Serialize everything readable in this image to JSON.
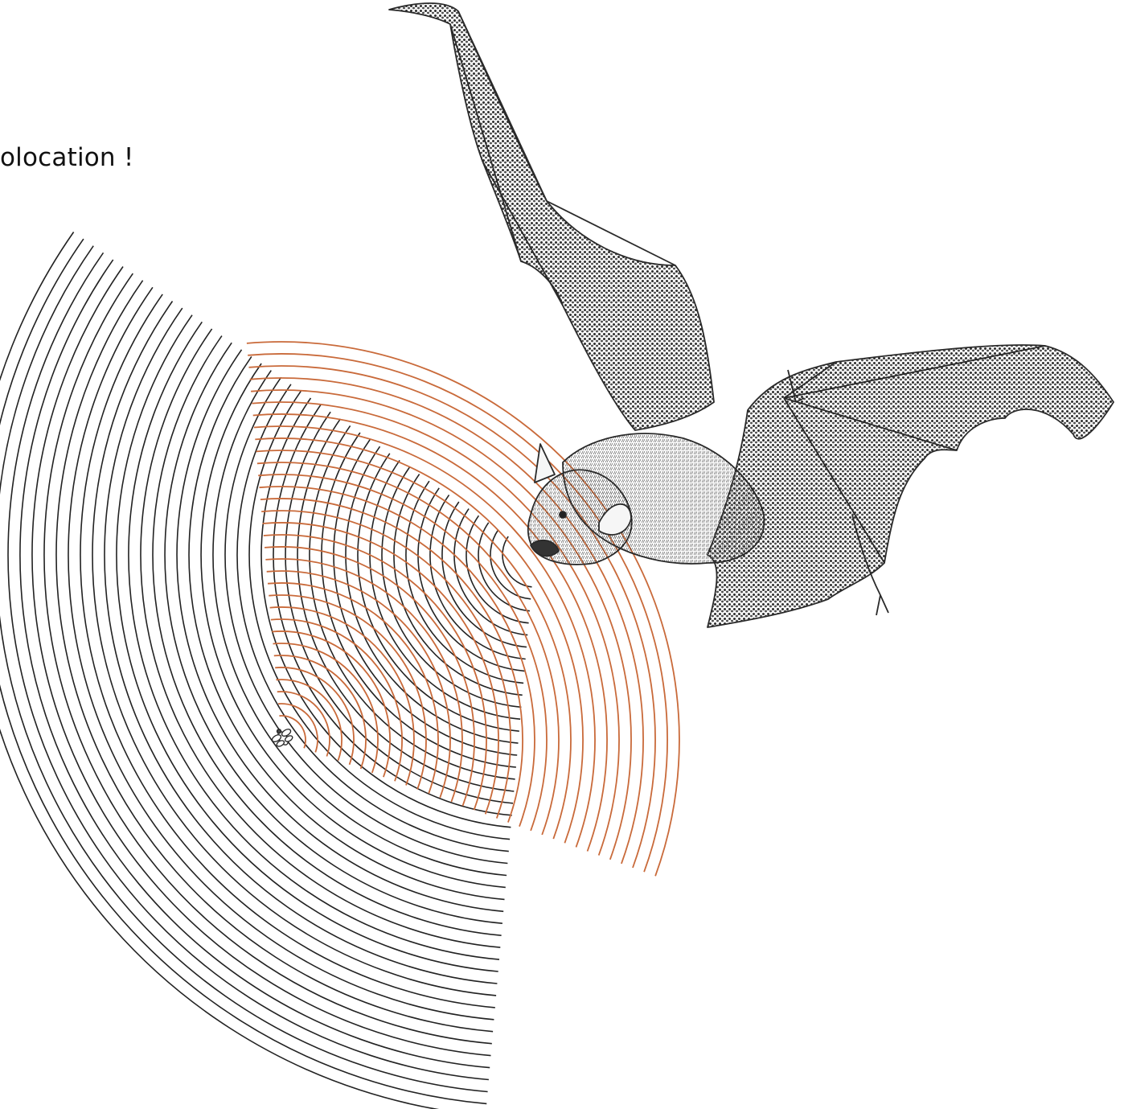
{
  "caption": {
    "text": "olocation !"
  },
  "illustration": {
    "subject_icon": "bat-icon",
    "target_icon": "insect-icon",
    "outgoing_wave_color": "#222222",
    "echo_wave_color": "#c96a3a"
  }
}
